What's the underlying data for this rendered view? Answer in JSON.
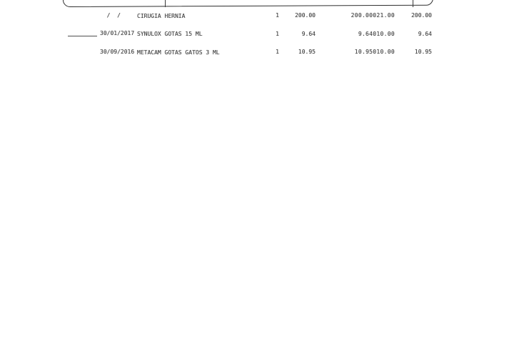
{
  "page": {
    "background_color": "#ffffff",
    "ink_color": "#474747",
    "frame_border_color": "#2f2f2f"
  },
  "invoice_table": {
    "rows": [
      {
        "date": "  /  /",
        "description": "CIRUGIA HERNIA",
        "quantity": "1",
        "unit_price": "200.00",
        "amount_and_tax": "200.00021.00",
        "total": "200.00"
      },
      {
        "date": "30/01/2017",
        "description": "SYNULOX GOTAS 15 ML",
        "quantity": "1",
        "unit_price": "9.64",
        "amount_and_tax": "9.64010.00",
        "total": "9.64"
      },
      {
        "date": "30/09/2016",
        "description": "METACAM GOTAS GATOS 3 ML",
        "quantity": "1",
        "unit_price": "10.95",
        "amount_and_tax": "10.95010.00",
        "total": "10.95"
      }
    ]
  }
}
